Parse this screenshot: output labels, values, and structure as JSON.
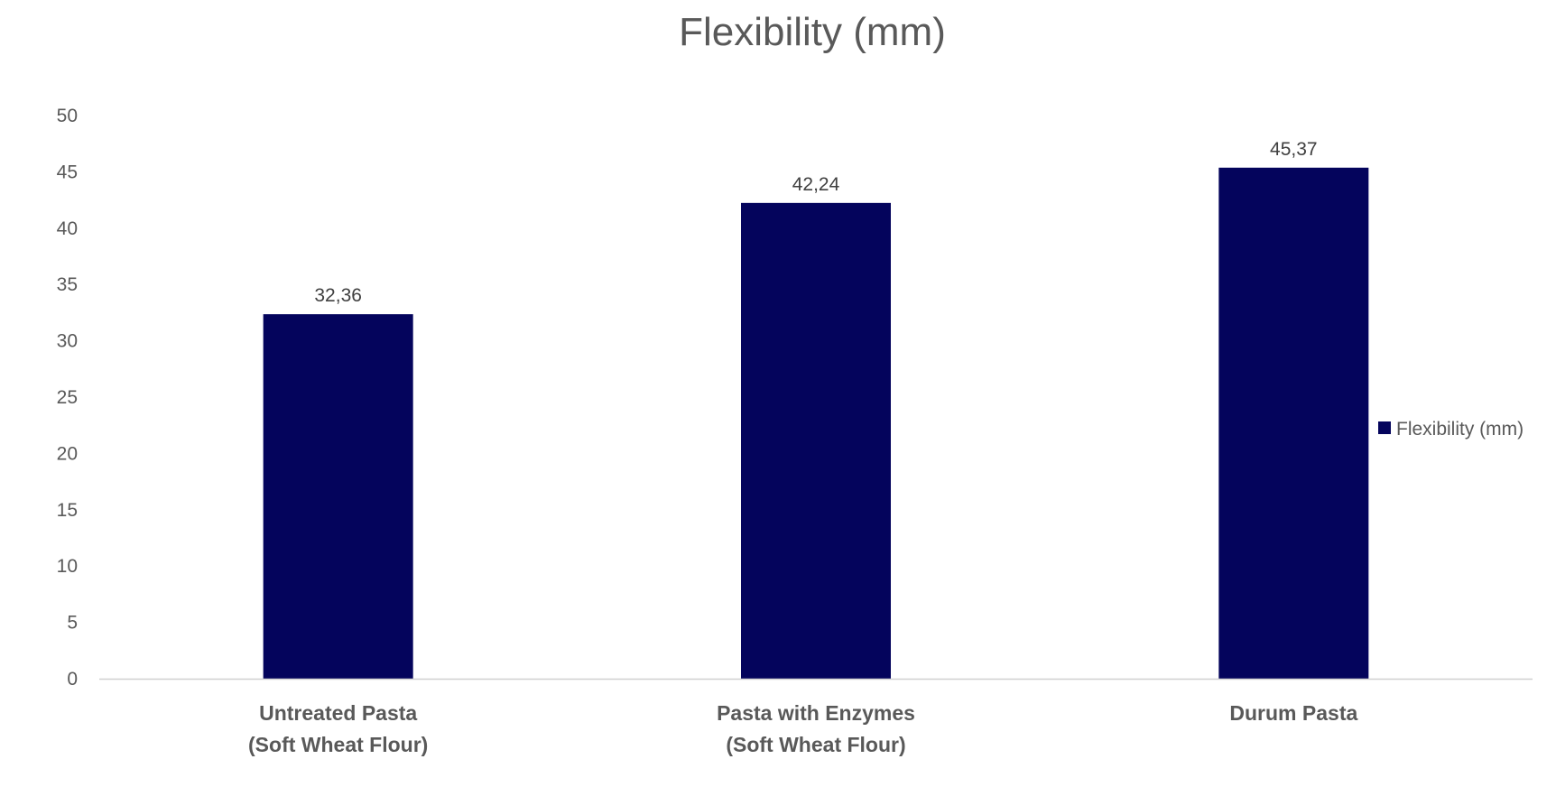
{
  "chart_data": {
    "type": "bar",
    "title": "Flexibility (mm)",
    "xlabel": "",
    "ylabel": "",
    "categories": [
      [
        "Untreated Pasta",
        "(Soft Wheat Flour)"
      ],
      [
        "Pasta with Enzymes",
        "(Soft Wheat Flour)"
      ],
      [
        "Durum Pasta"
      ]
    ],
    "series": [
      {
        "name": "Flexibility (mm)",
        "values": [
          32.36,
          42.24,
          45.37
        ],
        "data_labels": [
          "32,36",
          "42,24",
          "45,37"
        ],
        "color": "#04045c"
      }
    ],
    "ylim": [
      0,
      50
    ],
    "yticks": [
      0,
      5,
      10,
      15,
      20,
      25,
      30,
      35,
      40,
      45,
      50
    ],
    "grid": false,
    "legend": "right"
  },
  "colors": {
    "title": "#595959",
    "tick_label": "#595959",
    "category_label": "#595959",
    "data_label": "#404040",
    "axis_line": "#d0d0d0"
  }
}
